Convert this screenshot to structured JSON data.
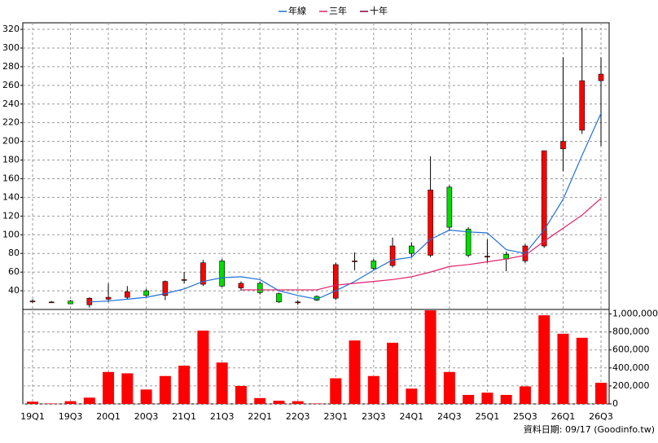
{
  "chart_data": {
    "type": "candlestick",
    "categories": [
      "19Q1",
      null,
      "19Q3",
      null,
      "20Q1",
      null,
      "20Q3",
      null,
      "21Q1",
      null,
      "21Q3",
      null,
      "22Q1",
      null,
      "22Q3",
      null,
      "23Q1",
      null,
      "23Q3",
      null,
      "24Q1",
      null,
      "24Q3",
      null,
      "25Q1",
      null,
      "25Q3",
      null,
      "26Q1",
      null,
      "26Q3"
    ],
    "open": [
      29,
      28,
      29,
      25,
      31,
      33,
      40,
      35,
      52,
      47,
      72,
      43,
      48,
      37,
      28,
      34,
      32,
      72,
      72,
      67,
      88,
      78,
      151,
      106,
      77,
      79,
      72,
      88,
      192,
      212,
      265
    ],
    "high": [
      31,
      29,
      30,
      33,
      48,
      45,
      42,
      51,
      60,
      73,
      74,
      50,
      50,
      38,
      30,
      35,
      70,
      81,
      74,
      97,
      92,
      184,
      153,
      108,
      95,
      82,
      90,
      190,
      290,
      322,
      290
    ],
    "low": [
      27,
      27,
      26,
      22,
      28,
      31,
      33,
      30,
      48,
      45,
      44,
      40,
      36,
      27,
      25,
      29,
      30,
      62,
      62,
      65,
      76,
      76,
      104,
      76,
      70,
      61,
      70,
      86,
      168,
      208,
      195
    ],
    "close": [
      29,
      28,
      26,
      32,
      33,
      39,
      35,
      50,
      52,
      70,
      45,
      48,
      38,
      28,
      28,
      30,
      68,
      72,
      64,
      88,
      80,
      148,
      108,
      78,
      77,
      74,
      88,
      190,
      200,
      265,
      272
    ],
    "up_color": "#ff0000",
    "down_color": "#00dd00",
    "series": [
      {
        "name": "年線",
        "color": "#1f6fd6",
        "values": [
          null,
          null,
          null,
          28,
          29,
          31,
          33,
          37,
          42,
          50,
          54,
          55,
          52,
          40,
          35,
          31,
          40,
          50,
          62,
          73,
          76,
          95,
          105,
          103,
          102,
          84,
          80,
          105,
          138,
          185,
          230
        ]
      },
      {
        "name": "三年",
        "color": "#e0206a",
        "values": [
          null,
          null,
          null,
          null,
          null,
          null,
          null,
          null,
          null,
          null,
          null,
          41,
          41,
          41,
          41,
          41,
          46,
          48,
          50,
          52,
          55,
          60,
          66,
          68,
          71,
          74,
          78,
          93,
          107,
          121,
          139
        ]
      },
      {
        "name": "十年",
        "color": "#800040",
        "values": [
          null,
          null,
          null,
          null,
          null,
          null,
          null,
          null,
          null,
          null,
          null,
          null,
          null,
          null,
          null,
          null,
          null,
          null,
          null,
          null,
          null,
          null,
          null,
          null,
          null,
          null,
          null,
          null,
          null,
          null,
          null
        ]
      }
    ],
    "ylim": [
      20,
      327
    ],
    "yticks": [
      40,
      60,
      80,
      100,
      120,
      140,
      160,
      180,
      200,
      220,
      240,
      260,
      280,
      300,
      320
    ],
    "grid": true,
    "volume": {
      "color": "#ff0000",
      "values": [
        25000,
        5000,
        30000,
        70000,
        355000,
        340000,
        160000,
        310000,
        425000,
        815000,
        460000,
        200000,
        65000,
        35000,
        30000,
        5000,
        285000,
        705000,
        310000,
        680000,
        170000,
        1040000,
        355000,
        100000,
        125000,
        100000,
        195000,
        985000,
        780000,
        735000,
        235000
      ],
      "ylim": [
        0,
        1050000
      ],
      "yticks": [
        0,
        {
          "value": 200000,
          "label": "200,000"
        },
        {
          "value": 400000,
          "label": "400,000"
        },
        {
          "value": 600000,
          "label": "600,000"
        },
        {
          "value": 800000,
          "label": "800,000"
        },
        {
          "value": 1000000,
          "label": "1,000,000"
        }
      ]
    },
    "source": "資料日期: 09/17 (Goodinfo.tw)"
  }
}
